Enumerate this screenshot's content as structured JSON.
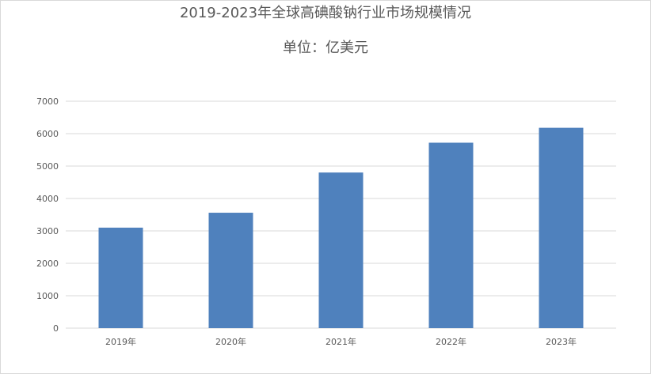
{
  "chart_data": {
    "type": "bar",
    "title": "2019-2023年全球高碘酸钠行业市场规模情况",
    "subtitle": "单位：亿美元",
    "categories": [
      "2019年",
      "2020年",
      "2021年",
      "2022年",
      "2023年"
    ],
    "series": [
      {
        "values": [
          3100,
          3560,
          4800,
          5720,
          6180
        ]
      }
    ],
    "ylim": [
      0,
      7000
    ],
    "yticks": [
      0,
      1000,
      2000,
      3000,
      4000,
      5000,
      6000,
      7000
    ],
    "grid": true,
    "legend": "none",
    "bar_color": "#4f81bd",
    "grid_color": "#d9d9d9",
    "text_color": "#595959"
  }
}
